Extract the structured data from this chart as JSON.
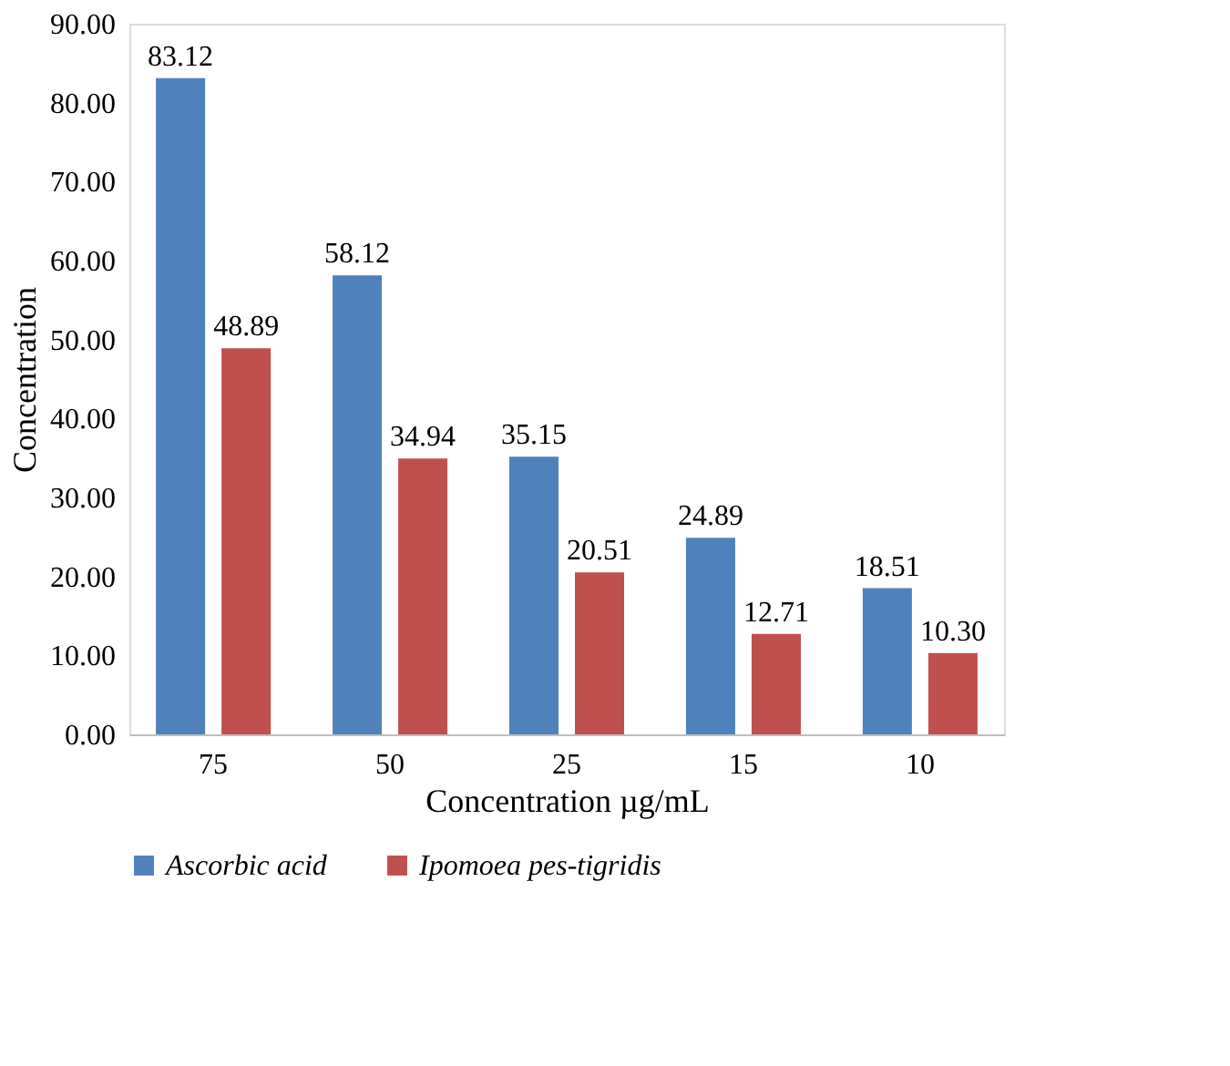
{
  "chart_data": {
    "type": "bar",
    "xlabel": "Concentration µg/mL",
    "ylabel": "Concentration",
    "categories": [
      "75",
      "50",
      "25",
      "15",
      "10"
    ],
    "series": [
      {
        "name": "Ascorbic acid",
        "color": "#4f81bd",
        "values": [
          83.12,
          58.12,
          35.15,
          24.89,
          18.51
        ],
        "value_labels": [
          "83.12",
          "58.12",
          "35.15",
          "24.89",
          "18.51"
        ]
      },
      {
        "name": "Ipomoea pes-tigridis",
        "color": "#c0504d",
        "values": [
          48.89,
          34.94,
          20.51,
          12.71,
          10.3
        ],
        "value_labels": [
          "48.89",
          "34.94",
          "20.51",
          "12.71",
          "10.30"
        ]
      }
    ],
    "ylim": [
      0,
      90
    ],
    "yticks": [
      {
        "value": 0,
        "label": "0.00"
      },
      {
        "value": 10,
        "label": "10.00"
      },
      {
        "value": 20,
        "label": "20.00"
      },
      {
        "value": 30,
        "label": "30.00"
      },
      {
        "value": 40,
        "label": "40.00"
      },
      {
        "value": 50,
        "label": "50.00"
      },
      {
        "value": 60,
        "label": "60.00"
      },
      {
        "value": 70,
        "label": "70.00"
      },
      {
        "value": 80,
        "label": "80.00"
      },
      {
        "value": 90,
        "label": "90.00"
      }
    ],
    "grid": false,
    "legend": "bottom"
  }
}
